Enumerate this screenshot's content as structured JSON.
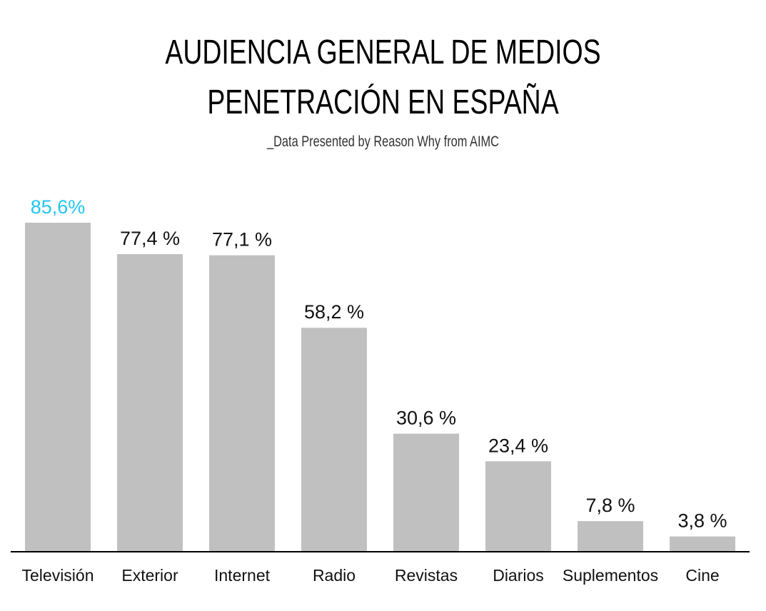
{
  "title_line1": "AUDIENCIA GENERAL DE MEDIOS",
  "title_line2": "PENETRACIÓN EN ESPAÑA",
  "subtitle": "_Data Presented by Reason Why from AIMC",
  "colors": {
    "bar": "#c0c0c0",
    "highlight_label": "#22c6ee",
    "label": "#111111",
    "axis": "#000000"
  },
  "chart_data": {
    "type": "bar",
    "categories": [
      "Televisión",
      "Exterior",
      "Internet",
      "Radio",
      "Revistas",
      "Diarios",
      "Suplementos",
      "Cine"
    ],
    "values": [
      85.6,
      77.4,
      77.1,
      58.2,
      30.6,
      23.4,
      7.8,
      3.8
    ],
    "value_labels": [
      "85,6%",
      "77,4 %",
      "77,1 %",
      "58,2 %",
      "30,6 %",
      "23,4 %",
      "7,8 %",
      "3,8 %"
    ],
    "highlight_index": 0,
    "title": "AUDIENCIA GENERAL DE MEDIOS PENETRACIÓN EN ESPAÑA",
    "subtitle": "_Data Presented by Reason Why from AIMC",
    "xlabel": "",
    "ylabel": "",
    "ylim": [
      0,
      85.6
    ],
    "grid": false,
    "legend": "none"
  }
}
